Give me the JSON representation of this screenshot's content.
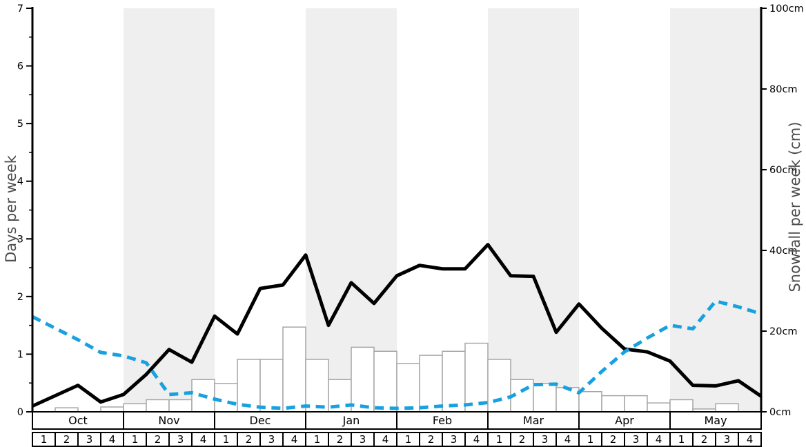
{
  "figure": {
    "left_axis_title": "Days per week",
    "right_axis_title": "Snowfall per week (cm)"
  },
  "colors": {
    "snow_days_line": "#000000",
    "rain_days_line": "#18a1e0",
    "month_band": "#efefef",
    "bar_fill": "#ffffff",
    "bar_stroke": "#a6a6a6",
    "axis": "#000000",
    "axis_title_text": "#4d4d4d"
  },
  "chart_data": {
    "type": "composite",
    "title": "",
    "months": [
      "Oct",
      "Nov",
      "Dec",
      "Jan",
      "Feb",
      "Mar",
      "Apr",
      "May"
    ],
    "week_labels": [
      "1",
      "2",
      "3",
      "4"
    ],
    "shaded_month_indices": [
      1,
      3,
      5,
      7
    ],
    "left_axis": {
      "label": "Days per week",
      "min": 0,
      "max": 7,
      "major_tick_interval": 1,
      "minor_tick_interval": 0.5,
      "tick_labels": [
        "0",
        "1",
        "2",
        "3",
        "4",
        "5",
        "6",
        "7"
      ]
    },
    "right_axis": {
      "label": "Snowfall per week (cm)",
      "min": 0,
      "max": 100,
      "major_tick_interval": 20,
      "tick_labels": [
        "0cm",
        "20cm",
        "40cm",
        "60cm",
        "80cm",
        "100cm"
      ]
    },
    "series": [
      {
        "name": "snowfall-per-week-bars",
        "type": "bar",
        "axis": "right",
        "unit": "cm",
        "note": "one bar per week, Oct w1 through May w4",
        "values": [
          0,
          1,
          0,
          1.2,
          2,
          3,
          3,
          8,
          7,
          13,
          13,
          21,
          13,
          8,
          16,
          15,
          12,
          14,
          15,
          17,
          13,
          8,
          7,
          6,
          5,
          4,
          4,
          2.2,
          3,
          0.7,
          2,
          0
        ]
      },
      {
        "name": "snow-days-per-week-line",
        "type": "line",
        "style": "solid",
        "axis": "left",
        "unit": "days",
        "note": "33 points at week boundaries from start of Oct to end of May",
        "values": [
          0.1,
          0.28,
          0.46,
          0.17,
          0.3,
          0.65,
          1.08,
          0.86,
          1.66,
          1.35,
          2.14,
          2.2,
          2.72,
          1.5,
          2.24,
          1.88,
          2.36,
          2.54,
          2.48,
          2.48,
          2.9,
          2.36,
          2.35,
          1.38,
          1.87,
          1.45,
          1.09,
          1.04,
          0.88,
          0.46,
          0.45,
          0.54,
          0.27
        ]
      },
      {
        "name": "rain-days-per-week-line",
        "type": "line",
        "style": "dashed",
        "axis": "left",
        "unit": "days",
        "note": "33 points at week boundaries from start of Oct to end of May",
        "values": [
          1.65,
          1.45,
          1.25,
          1.03,
          0.97,
          0.85,
          0.3,
          0.33,
          0.22,
          0.13,
          0.08,
          0.06,
          0.1,
          0.08,
          0.12,
          0.07,
          0.06,
          0.07,
          0.1,
          0.12,
          0.16,
          0.26,
          0.47,
          0.48,
          0.33,
          0.7,
          1.04,
          1.28,
          1.5,
          1.44,
          1.92,
          1.82,
          1.7
        ]
      }
    ],
    "layout_hints": {
      "grid": false,
      "legend": false,
      "alternating_month_shading": true
    }
  }
}
